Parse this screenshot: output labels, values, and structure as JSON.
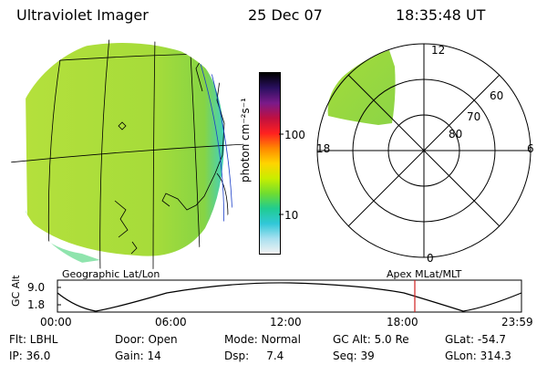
{
  "header": {
    "title": "Ultraviolet Imager",
    "date": "25 Dec 07",
    "time": "18:35:48 UT"
  },
  "colorbar": {
    "unit_label": "photon cm⁻²s⁻¹",
    "tick_labels": [
      "100",
      "10"
    ],
    "gradient_stops": [
      "#000000",
      "#2a1060",
      "#7a1a8a",
      "#c01040",
      "#ff2020",
      "#ff8800",
      "#ffd400",
      "#c8ee00",
      "#70dd30",
      "#20cc90",
      "#30c8d8",
      "#a8e0f0",
      "#f2f2f2"
    ]
  },
  "left_map": {
    "label": "Geographic Lat/Lon",
    "fill_colors": [
      "#b0e23a",
      "#94d83a",
      "#3ed4c0"
    ]
  },
  "polar_plot": {
    "label": "Apex MLat/MLT",
    "mlt_labels": {
      "top": "12",
      "left": "18",
      "right": "6",
      "bottom": "0"
    },
    "lat_labels": [
      "60",
      "70",
      "80"
    ]
  },
  "altitude_plot": {
    "ylabel": "GC Alt",
    "yticks": [
      "9.0",
      "1.8"
    ],
    "xticks": [
      "00:00",
      "06:00",
      "12:00",
      "18:00",
      "23:59"
    ],
    "current_time_marker": "18:35"
  },
  "info": {
    "row1": [
      "Flt: LBHL",
      "Door: Open",
      "Mode: Normal",
      "GC Alt: 5.0 Re",
      "GLat: -54.7"
    ],
    "row2": [
      "IP: 36.0",
      "Gain: 14",
      "Dsp:     7.4",
      "Seq: 39",
      "GLon: 314.3"
    ]
  }
}
